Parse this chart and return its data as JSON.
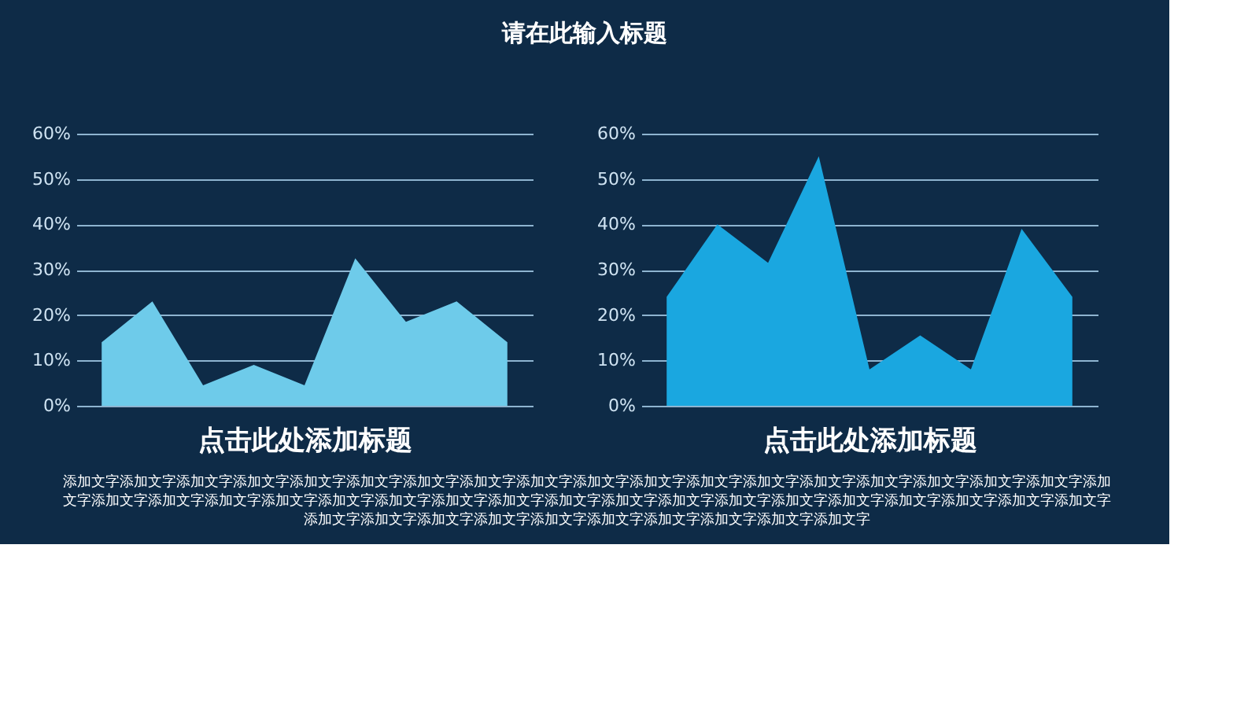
{
  "chart_data": [
    {
      "type": "area",
      "xlabel": "点击此处添加标题",
      "categories": [
        null,
        null,
        null,
        null,
        null,
        null,
        null,
        null,
        null
      ],
      "values": [
        14,
        23,
        4.5,
        9,
        4.5,
        32.5,
        18.5,
        23,
        14
      ],
      "color": "#6ecbea",
      "ylim": [
        0,
        60
      ],
      "yticks": [
        {
          "value": 0,
          "label": "0%"
        },
        {
          "value": 10,
          "label": "10%"
        },
        {
          "value": 20,
          "label": "20%"
        },
        {
          "value": 30,
          "label": "30%"
        },
        {
          "value": 40,
          "label": "40%"
        },
        {
          "value": 50,
          "label": "50%"
        },
        {
          "value": 60,
          "label": "60%"
        }
      ],
      "grid": "y",
      "tick_labels": "y"
    },
    {
      "type": "area",
      "xlabel": "点击此处添加标题",
      "categories": [
        null,
        null,
        null,
        null,
        null,
        null,
        null,
        null,
        null
      ],
      "values": [
        24,
        40,
        31.5,
        55,
        8,
        15.5,
        8,
        39,
        24
      ],
      "color": "#1aa7e0",
      "ylim": [
        0,
        60
      ],
      "yticks": [
        {
          "value": 0,
          "label": "0%"
        },
        {
          "value": 10,
          "label": "10%"
        },
        {
          "value": 20,
          "label": "20%"
        },
        {
          "value": 30,
          "label": "30%"
        },
        {
          "value": 40,
          "label": "40%"
        },
        {
          "value": 50,
          "label": "50%"
        },
        {
          "value": 60,
          "label": "60%"
        }
      ],
      "grid": "y",
      "tick_labels": "y"
    },
    {
      "type": "other",
      "title": "请在此输入标题",
      "annotations": [
        "添加文字添加文字添加文字添加文字添加文字添加文字添加文字添加文字添加文字添加文字添加文字添加文字添加文字添加文字添加文字添加文字添加文字添加文字添加文字添加文字添加文字添加文字添加文字添加文字添加文字添加文字添加文字添加文字添加文字添加文字添加文字添加文字添加文字添加文字添加文字添加文字添加文字添加文字添加文字添加文字添加文字添加文字添加文字添加文字添加文字添加文字添加文字"
      ]
    }
  ]
}
